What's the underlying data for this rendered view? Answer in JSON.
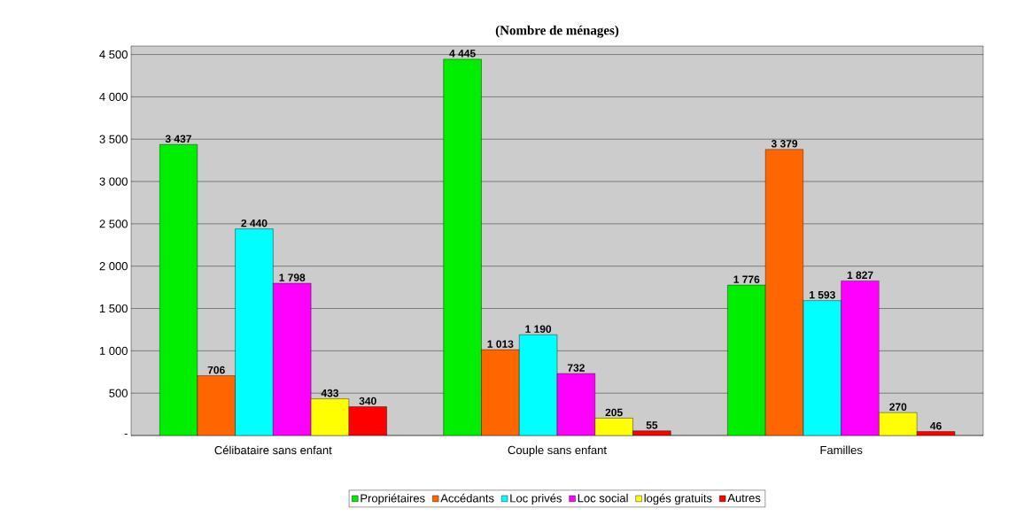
{
  "chart_data": {
    "type": "bar",
    "title": "(Nombre de ménages)",
    "categories": [
      "Célibataire sans enfant",
      "Couple sans enfant",
      "Familles"
    ],
    "series": [
      {
        "name": "Propriétaires",
        "color": "#00ee00",
        "values": [
          3437,
          4445,
          1776
        ],
        "value_labels": [
          "3 437",
          "4 445",
          "1 776"
        ]
      },
      {
        "name": "Accédants",
        "color": "#ff6600",
        "values": [
          706,
          1013,
          3379
        ],
        "value_labels": [
          "706",
          "1 013",
          "3 379"
        ]
      },
      {
        "name": "Loc privés",
        "color": "#00ffff",
        "values": [
          2440,
          1190,
          1593
        ],
        "value_labels": [
          "2 440",
          "1 190",
          "1 593"
        ]
      },
      {
        "name": "Loc social",
        "color": "#ff00ff",
        "values": [
          1798,
          732,
          1827
        ],
        "value_labels": [
          "1 798",
          "732",
          "1 827"
        ]
      },
      {
        "name": "logés gratuits",
        "color": "#ffff00",
        "values": [
          433,
          205,
          270
        ],
        "value_labels": [
          "433",
          "205",
          "270"
        ]
      },
      {
        "name": "Autres",
        "color": "#ff0000",
        "values": [
          340,
          55,
          46
        ],
        "value_labels": [
          "340",
          "55",
          "46"
        ]
      }
    ],
    "ylim": [
      0,
      4600
    ],
    "yticks": [
      {
        "value": 0,
        "label": "-"
      },
      {
        "value": 500,
        "label": "500"
      },
      {
        "value": 1000,
        "label": "1 000"
      },
      {
        "value": 1500,
        "label": "1 500"
      },
      {
        "value": 2000,
        "label": "2 000"
      },
      {
        "value": 2500,
        "label": "2 500"
      },
      {
        "value": 3000,
        "label": "3 000"
      },
      {
        "value": 3500,
        "label": "3 500"
      },
      {
        "value": 4000,
        "label": "4 000"
      },
      {
        "value": 4500,
        "label": "4 500"
      }
    ],
    "grid": "y",
    "legend": "bottom"
  }
}
